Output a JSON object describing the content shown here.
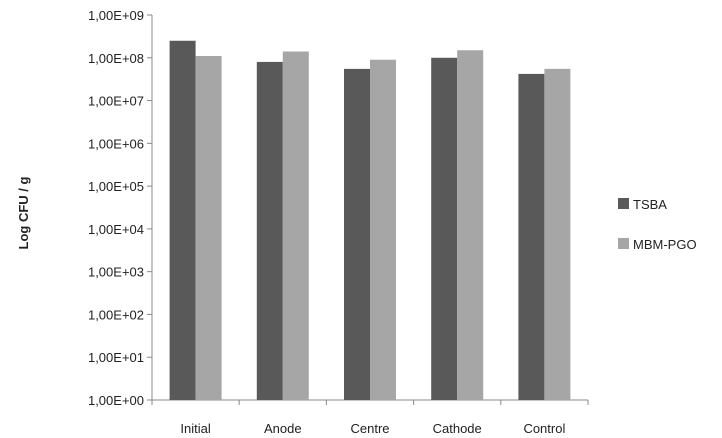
{
  "chart_data": {
    "type": "bar",
    "title": "",
    "xlabel": "",
    "ylabel": "Log CFU / g",
    "y_scale": "log",
    "ylim": [
      1,
      1000000000
    ],
    "y_ticks": [
      1,
      10,
      100,
      1000,
      10000,
      100000,
      1000000,
      10000000,
      100000000,
      1000000000
    ],
    "y_tick_labels": [
      "1,00E+00",
      "1,00E+01",
      "1,00E+02",
      "1,00E+03",
      "1,00E+04",
      "1,00E+05",
      "1,00E+06",
      "1,00E+07",
      "1,00E+08",
      "1,00E+09"
    ],
    "categories": [
      "Initial",
      "Anode",
      "Centre",
      "Cathode",
      "Control"
    ],
    "series": [
      {
        "name": "TSBA",
        "values": [
          250000000,
          80000000,
          55000000,
          100000000,
          42000000
        ],
        "color": "#595959"
      },
      {
        "name": "MBM-PGO",
        "values": [
          110000000,
          140000000,
          90000000,
          150000000,
          55000000
        ],
        "color": "#a6a6a6"
      }
    ],
    "legend_position": "right",
    "grid": false
  }
}
